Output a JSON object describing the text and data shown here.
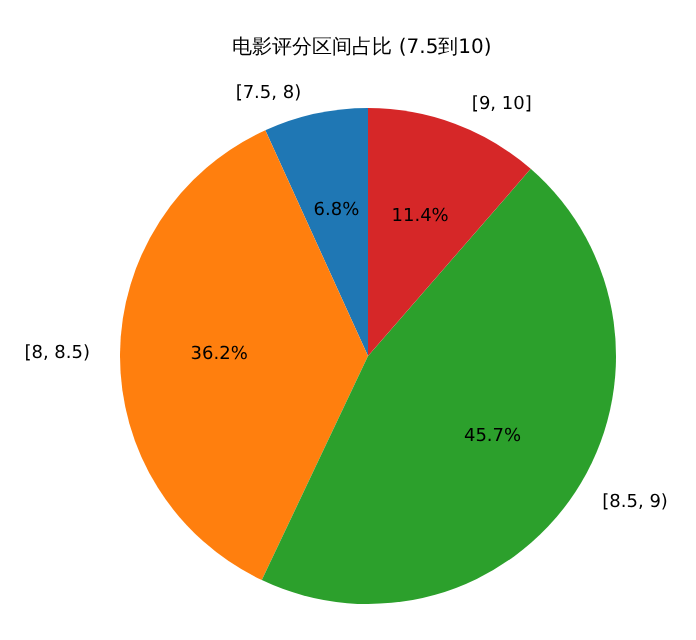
{
  "chart_data": {
    "type": "pie",
    "title": "电影评分区间占比 (7.5到10)",
    "categories": [
      "[7.5, 8)",
      "[8, 8.5)",
      "[8.5, 9)",
      "[9, 10]"
    ],
    "values": [
      6.8,
      36.2,
      45.7,
      11.4
    ],
    "colors": [
      "#1f77b4",
      "#ff7f0e",
      "#2ca02c",
      "#d62728"
    ],
    "value_labels": [
      "6.8%",
      "36.2%",
      "45.7%",
      "11.4%"
    ],
    "legend": false
  }
}
